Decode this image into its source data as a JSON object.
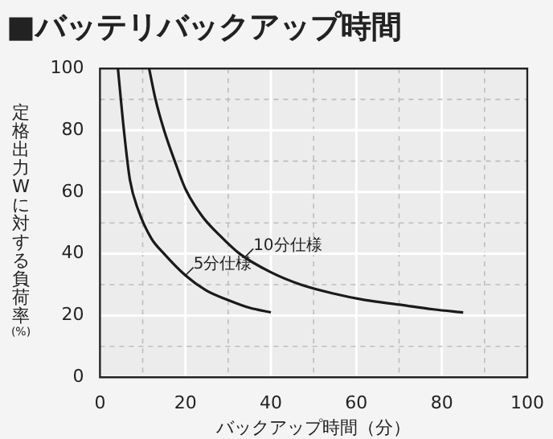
{
  "chart_data": {
    "type": "line",
    "title": "■バッテリバックアップ時間",
    "xlabel": "バックアップ時間（分）",
    "ylabel": "定格出力Wに対する負荷率(%)",
    "series": [
      {
        "color": "#1a1a1a",
        "x": [
          4.2,
          5.6,
          7,
          9,
          12,
          15,
          20,
          25,
          30,
          35,
          40
        ],
        "values": [
          100,
          80,
          64,
          54,
          45,
          40,
          33,
          28,
          25,
          22.5,
          21
        ]
      },
      {
        "color": "#1a1a1a",
        "x": [
          11.5,
          13,
          15,
          17.5,
          20,
          24,
          28,
          32.7,
          40,
          47,
          55,
          62,
          70,
          78,
          85
        ],
        "values": [
          100,
          90,
          80,
          70,
          61,
          52,
          46,
          40,
          34,
          30,
          27,
          25,
          23.5,
          22,
          21
        ]
      }
    ],
    "annotations": [
      {
        "text": "10分仕様",
        "x": 34,
        "y": 39
      },
      {
        "text": "5分仕様",
        "x": 20,
        "y": 33
      }
    ],
    "xlim": [
      0,
      100
    ],
    "ylim": [
      0,
      100
    ],
    "xticks": [
      0,
      {
        "value": 10,
        "label": null
      },
      20,
      {
        "value": 30,
        "label": null
      },
      40,
      {
        "value": 50,
        "label": null
      },
      60,
      {
        "value": 70,
        "label": null
      },
      80,
      {
        "value": 90,
        "label": null
      },
      100
    ],
    "yticks": [
      0,
      {
        "value": 10,
        "label": null
      },
      20,
      {
        "value": 30,
        "label": null
      },
      40,
      {
        "value": 50,
        "label": null
      },
      60,
      {
        "value": 70,
        "label": null
      },
      80,
      {
        "value": 90,
        "label": null
      },
      100
    ],
    "grid": true,
    "legend": false,
    "marker": "none",
    "line_style": "solid"
  }
}
